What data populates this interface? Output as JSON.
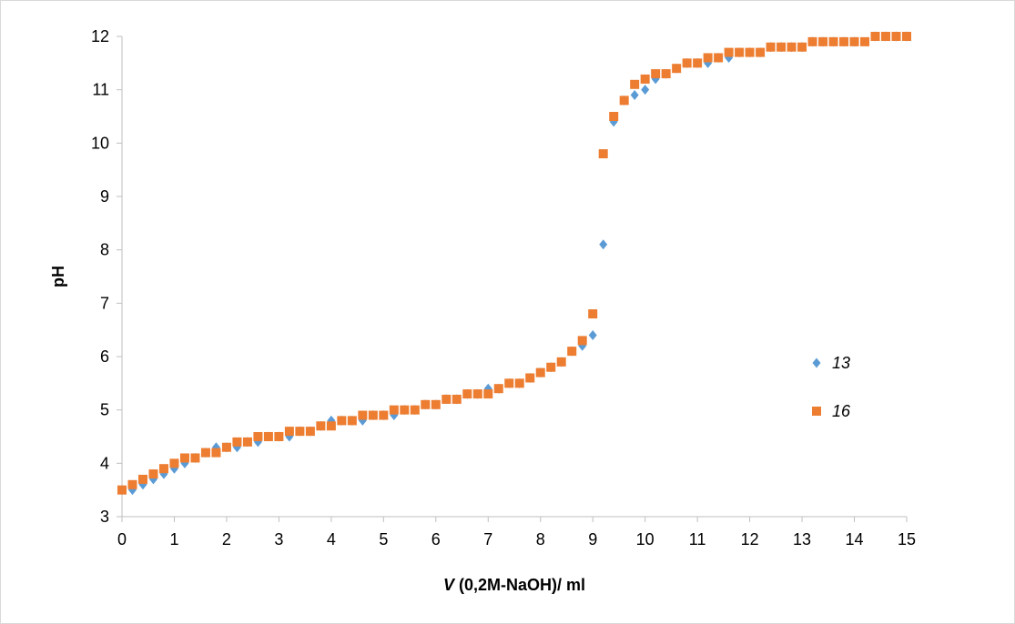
{
  "chart_data": {
    "type": "scatter",
    "title": "",
    "xlabel_italic": "V",
    "xlabel_rest": " (0,2M-NaOH)/ ml",
    "ylabel": "pH",
    "xlim": [
      0,
      15
    ],
    "ylim": [
      3,
      12
    ],
    "xticks": [
      0,
      1,
      2,
      3,
      4,
      5,
      6,
      7,
      8,
      9,
      10,
      11,
      12,
      13,
      14,
      15
    ],
    "yticks": [
      3,
      4,
      5,
      6,
      7,
      8,
      9,
      10,
      11,
      12
    ],
    "grid": false,
    "legend_position": "right",
    "series": [
      {
        "name": "13",
        "color": "#5b9bd5",
        "marker": "diamond",
        "x": [
          0,
          0.2,
          0.4,
          0.6,
          0.8,
          1.0,
          1.2,
          1.4,
          1.6,
          1.8,
          2.0,
          2.2,
          2.4,
          2.6,
          2.8,
          3.0,
          3.2,
          3.4,
          3.6,
          3.8,
          4.0,
          4.2,
          4.4,
          4.6,
          4.8,
          5.0,
          5.2,
          5.4,
          5.6,
          5.8,
          6.0,
          6.2,
          6.4,
          6.6,
          6.8,
          7.0,
          7.2,
          7.4,
          7.6,
          7.8,
          8.0,
          8.2,
          8.4,
          8.6,
          8.8,
          9.0,
          9.2,
          9.4,
          9.6,
          9.8,
          10.0,
          10.2,
          10.4,
          10.6,
          10.8,
          11.0,
          11.2,
          11.4,
          11.6,
          11.8,
          12.0,
          12.2,
          12.4,
          12.6,
          12.8,
          13.0,
          13.2,
          13.4,
          13.6,
          13.8,
          14.0,
          14.4,
          14.6,
          14.8,
          15.0
        ],
        "y": [
          3.5,
          3.5,
          3.6,
          3.7,
          3.8,
          3.9,
          4.0,
          4.1,
          4.2,
          4.3,
          4.3,
          4.3,
          4.4,
          4.4,
          4.5,
          4.5,
          4.5,
          4.6,
          4.6,
          4.7,
          4.8,
          4.8,
          4.8,
          4.8,
          4.9,
          4.9,
          4.9,
          5.0,
          5.0,
          5.1,
          5.1,
          5.2,
          5.2,
          5.3,
          5.3,
          5.4,
          5.4,
          5.5,
          5.5,
          5.6,
          5.7,
          5.8,
          5.9,
          6.1,
          6.2,
          6.4,
          8.1,
          10.4,
          10.8,
          10.9,
          11.0,
          11.2,
          11.3,
          11.4,
          11.5,
          11.5,
          11.5,
          11.6,
          11.6,
          11.7,
          11.7,
          11.7,
          11.8,
          11.8,
          11.8,
          11.8,
          11.9,
          11.9,
          11.9,
          11.9,
          11.9,
          12.0,
          12.0,
          12.0,
          12.0
        ]
      },
      {
        "name": "16",
        "color": "#ed7d31",
        "marker": "square",
        "x": [
          0,
          0.2,
          0.4,
          0.6,
          0.8,
          1.0,
          1.2,
          1.4,
          1.6,
          1.8,
          2.0,
          2.2,
          2.4,
          2.6,
          2.8,
          3.0,
          3.2,
          3.4,
          3.6,
          3.8,
          4.0,
          4.2,
          4.4,
          4.6,
          4.8,
          5.0,
          5.2,
          5.4,
          5.6,
          5.8,
          6.0,
          6.2,
          6.4,
          6.6,
          6.8,
          7.0,
          7.2,
          7.4,
          7.6,
          7.8,
          8.0,
          8.2,
          8.4,
          8.6,
          8.8,
          9.0,
          9.2,
          9.4,
          9.6,
          9.8,
          10.0,
          10.2,
          10.4,
          10.6,
          10.8,
          11.0,
          11.2,
          11.4,
          11.6,
          11.8,
          12.0,
          12.2,
          12.4,
          12.6,
          12.8,
          13.0,
          13.2,
          13.4,
          13.6,
          13.8,
          14.0,
          14.2,
          14.4,
          14.6,
          14.8,
          15.0
        ],
        "y": [
          3.5,
          3.6,
          3.7,
          3.8,
          3.9,
          4.0,
          4.1,
          4.1,
          4.2,
          4.2,
          4.3,
          4.4,
          4.4,
          4.5,
          4.5,
          4.5,
          4.6,
          4.6,
          4.6,
          4.7,
          4.7,
          4.8,
          4.8,
          4.9,
          4.9,
          4.9,
          5.0,
          5.0,
          5.0,
          5.1,
          5.1,
          5.2,
          5.2,
          5.3,
          5.3,
          5.3,
          5.4,
          5.5,
          5.5,
          5.6,
          5.7,
          5.8,
          5.9,
          6.1,
          6.3,
          6.8,
          9.8,
          10.5,
          10.8,
          11.1,
          11.2,
          11.3,
          11.3,
          11.4,
          11.5,
          11.5,
          11.6,
          11.6,
          11.7,
          11.7,
          11.7,
          11.7,
          11.8,
          11.8,
          11.8,
          11.8,
          11.9,
          11.9,
          11.9,
          11.9,
          11.9,
          11.9,
          12.0,
          12.0,
          12.0,
          12.0
        ]
      }
    ]
  }
}
